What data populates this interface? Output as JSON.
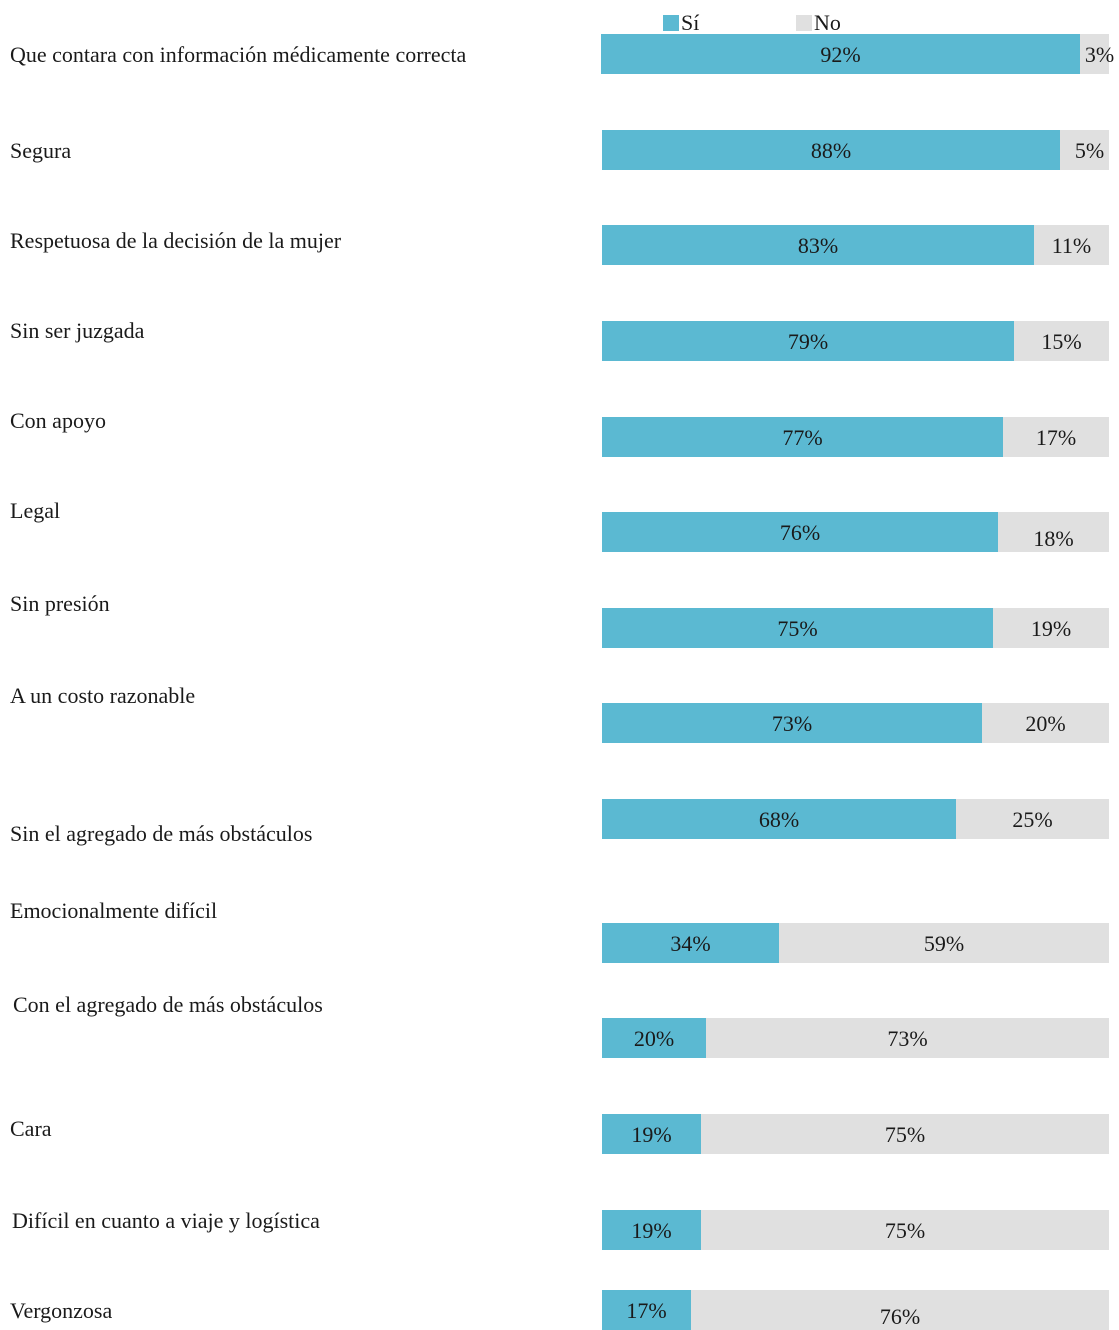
{
  "chart_data": {
    "type": "bar",
    "orientation": "horizontal",
    "stacked": true,
    "categories": [
      "Que contara con información médicamente correcta",
      "Segura",
      "Respetuosa de la decisión de la mujer",
      "Sin ser juzgada",
      "Con apoyo",
      "Legal",
      "Sin presión",
      "A un costo razonable",
      "Sin el agregado de más obstáculos",
      "Emocionalmente difícil",
      "Con el agregado de más obstáculos",
      "Cara",
      "Difícil en cuanto a viaje y logística",
      "Vergonzosa"
    ],
    "series": [
      {
        "name": "Sí",
        "color": "#5bb9d2",
        "values": [
          92,
          88,
          83,
          79,
          77,
          76,
          75,
          73,
          68,
          34,
          20,
          19,
          19,
          17
        ],
        "labels": [
          "92%",
          "88%",
          "83%",
          "79%",
          "77%",
          "76%",
          "75%",
          "73%",
          "68%",
          "34%",
          "20%",
          "19%",
          "19%",
          "17%"
        ]
      },
      {
        "name": "No",
        "color": "#e0e0e0",
        "values": [
          3,
          5,
          11,
          15,
          17,
          18,
          19,
          20,
          25,
          59,
          73,
          75,
          75,
          76
        ],
        "labels": [
          "3%",
          "5%",
          "11%",
          "15%",
          "17%",
          "18%",
          "19%",
          "20%",
          "25%",
          "59%",
          "73%",
          "75%",
          "75%",
          "76%"
        ]
      }
    ],
    "legend_position": "top",
    "grid": false
  }
}
